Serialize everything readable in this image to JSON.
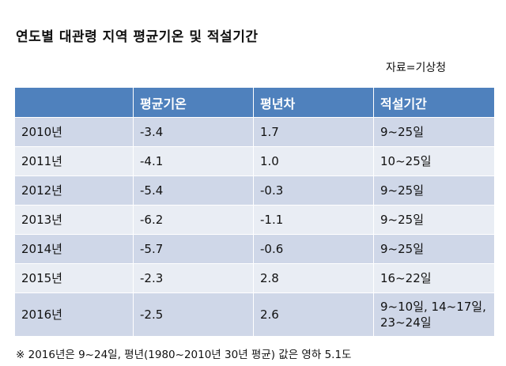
{
  "title": "연도별 대관령 지역 평균기온 및 적설기간",
  "source": "자료=기상청",
  "table": {
    "headers": [
      "",
      "평균기온",
      "평년차",
      "적설기간"
    ],
    "rows": [
      [
        "2010년",
        "-3.4",
        "1.7",
        "9~25일"
      ],
      [
        "2011년",
        "-4.1",
        "1.0",
        "10~25일"
      ],
      [
        "2012년",
        "-5.4",
        "-0.3",
        "9~25일"
      ],
      [
        "2013년",
        "-6.2",
        "-1.1",
        "9~25일"
      ],
      [
        "2014년",
        "-5.7",
        "-0.6",
        "9~25일"
      ],
      [
        "2015년",
        "-2.3",
        "2.8",
        "16~22일"
      ],
      [
        "2016년",
        "-2.5",
        "2.6",
        "9~10일, 14~17일, 23~24일"
      ]
    ]
  },
  "note": "※ 2016년은 9~24일, 평년(1980~2010년 30년 평균) 값은 영하 5.1도",
  "colors": {
    "header_bg": "#4f81bd",
    "row_dark": "#cfd7e8",
    "row_light": "#e9edf4"
  }
}
